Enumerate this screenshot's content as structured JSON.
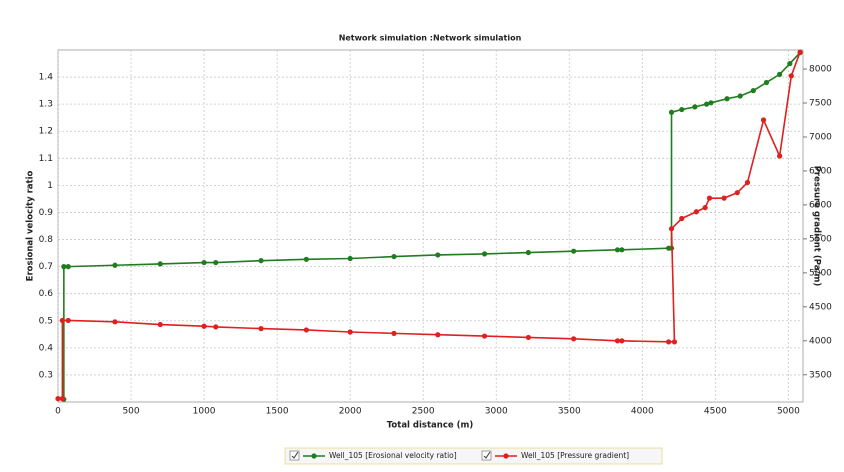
{
  "chart_data": {
    "type": "line",
    "title": "Network simulation :Network simulation",
    "x_label": "Total distance (m)",
    "y_label": "Erosional velocity ratio",
    "y2_label": "Pressure gradient (Pa/m)",
    "xlim": [
      0,
      5100
    ],
    "xticks": [
      0,
      500,
      1000,
      1500,
      2000,
      2500,
      3000,
      3500,
      4000,
      4500,
      5000
    ],
    "ylim": [
      0.2,
      1.5
    ],
    "yticks": [
      0.3,
      0.4,
      0.5,
      0.6,
      0.7,
      0.8,
      0.9,
      1,
      1.1,
      1.2,
      1.3,
      1.4
    ],
    "y2lim": [
      3100,
      8280
    ],
    "y2ticks": [
      3500,
      4000,
      4500,
      5000,
      5500,
      6000,
      6500,
      7000,
      7500,
      8000
    ],
    "grid": true,
    "series": [
      {
        "name": "Well_105 [Erosional velocity ratio]",
        "color": "#1f7d1f",
        "axis": "y",
        "x": [
          40,
          40,
          70,
          390,
          700,
          1000,
          1080,
          1390,
          1700,
          2000,
          2300,
          2600,
          2920,
          3220,
          3530,
          3830,
          3860,
          4180,
          4200,
          4200,
          4270,
          4360,
          4440,
          4470,
          4580,
          4670,
          4760,
          4850,
          4940,
          5010,
          5080
        ],
        "values": [
          0.21,
          0.7,
          0.7,
          0.705,
          0.71,
          0.715,
          0.715,
          0.722,
          0.727,
          0.73,
          0.737,
          0.743,
          0.747,
          0.752,
          0.757,
          0.762,
          0.762,
          0.768,
          0.768,
          1.27,
          1.28,
          1.29,
          1.3,
          1.305,
          1.32,
          1.33,
          1.35,
          1.38,
          1.41,
          1.45,
          1.49
        ]
      },
      {
        "name": "Well_105 [Pressure gradient]",
        "color": "#e0201e",
        "axis": "y2",
        "x": [
          0,
          30,
          30,
          70,
          390,
          700,
          1000,
          1080,
          1390,
          1700,
          2000,
          2300,
          2600,
          2920,
          3220,
          3530,
          3830,
          3860,
          4180,
          4220,
          4200,
          4270,
          4370,
          4430,
          4460,
          4560,
          4650,
          4720,
          4830,
          4940,
          5020,
          5080
        ],
        "values": [
          3150,
          3150,
          4300,
          4300,
          4280,
          4240,
          4215,
          4205,
          4180,
          4160,
          4130,
          4110,
          4090,
          4070,
          4050,
          4030,
          4000,
          4000,
          3985,
          3985,
          5650,
          5800,
          5900,
          5960,
          6100,
          6100,
          6180,
          6330,
          7250,
          6720,
          7900,
          8250
        ]
      }
    ]
  }
}
